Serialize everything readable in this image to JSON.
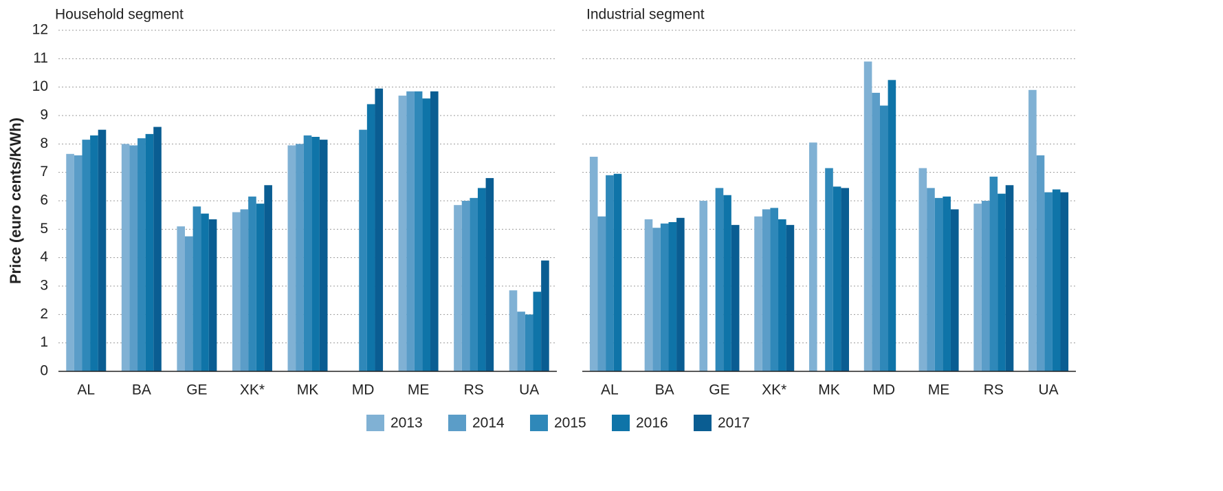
{
  "chart_data": [
    {
      "type": "bar",
      "title": "Household segment",
      "y_label": "Price (euro cents/KWh)",
      "categories": [
        "AL",
        "BA",
        "GE",
        "XK*",
        "MK",
        "MD",
        "ME",
        "RS",
        "UA"
      ],
      "series": [
        {
          "name": "2013",
          "color": "#80b1d4",
          "values": [
            7.65,
            8.0,
            5.1,
            5.6,
            7.95,
            null,
            9.7,
            5.85,
            2.85
          ]
        },
        {
          "name": "2014",
          "color": "#5b9dc8",
          "values": [
            7.6,
            7.95,
            4.75,
            5.7,
            8.0,
            null,
            9.85,
            6.0,
            2.1
          ]
        },
        {
          "name": "2015",
          "color": "#2f88b9",
          "values": [
            8.15,
            8.2,
            5.8,
            6.15,
            8.3,
            8.5,
            9.85,
            6.1,
            2.0
          ]
        },
        {
          "name": "2016",
          "color": "#0f74a8",
          "values": [
            8.3,
            8.35,
            5.55,
            5.9,
            8.25,
            9.4,
            9.6,
            6.45,
            2.8
          ]
        },
        {
          "name": "2017",
          "color": "#0a5d92",
          "values": [
            8.5,
            8.6,
            5.35,
            6.55,
            8.15,
            9.95,
            9.85,
            6.8,
            3.9
          ]
        }
      ],
      "ylim": [
        0,
        12
      ],
      "yticks": [
        0,
        1,
        2,
        3,
        4,
        5,
        6,
        7,
        8,
        9,
        10,
        11,
        12
      ],
      "grid": true
    },
    {
      "type": "bar",
      "title": "Industrial segment",
      "categories": [
        "AL",
        "BA",
        "GE",
        "XK*",
        "MK",
        "MD",
        "ME",
        "RS",
        "UA"
      ],
      "series": [
        {
          "name": "2013",
          "color": "#80b1d4",
          "values": [
            7.55,
            5.35,
            6.0,
            5.45,
            8.05,
            10.9,
            7.15,
            5.9,
            9.9
          ]
        },
        {
          "name": "2014",
          "color": "#5b9dc8",
          "values": [
            5.45,
            5.05,
            null,
            5.7,
            null,
            9.8,
            6.45,
            6.0,
            7.6
          ]
        },
        {
          "name": "2015",
          "color": "#2f88b9",
          "values": [
            6.9,
            5.2,
            6.45,
            5.75,
            7.15,
            9.35,
            6.1,
            6.85,
            6.3
          ]
        },
        {
          "name": "2016",
          "color": "#0f74a8",
          "values": [
            6.95,
            5.25,
            6.2,
            5.35,
            6.5,
            10.25,
            6.15,
            6.25,
            6.4
          ]
        },
        {
          "name": "2017",
          "color": "#0a5d92",
          "values": [
            null,
            5.4,
            5.15,
            5.15,
            6.45,
            null,
            5.7,
            6.55,
            6.3
          ]
        }
      ],
      "ylim": [
        0,
        12
      ],
      "yticks": [
        0,
        1,
        2,
        3,
        4,
        5,
        6,
        7,
        8,
        9,
        10,
        11,
        12
      ],
      "grid": true
    }
  ]
}
